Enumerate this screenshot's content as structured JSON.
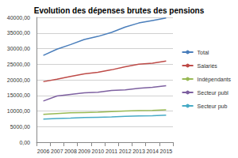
{
  "chart_data": {
    "type": "line",
    "title": "Evolution des dépenses brutes des pensions",
    "categories": [
      "2006",
      "2007",
      "2008",
      "2009",
      "2010",
      "2011",
      "2012",
      "2013",
      "2014",
      "2015"
    ],
    "series": [
      {
        "name": "Total",
        "color": "#4a7ebb",
        "values": [
          27800,
          29800,
          31300,
          32900,
          33900,
          35200,
          36900,
          38200,
          39000,
          39800
        ]
      },
      {
        "name": "Salariés",
        "color": "#be4b48",
        "values": [
          19400,
          20200,
          21100,
          21900,
          22400,
          23200,
          24200,
          25000,
          25300,
          26000
        ]
      },
      {
        "name": "Indépendants",
        "color": "#98b954",
        "values": [
          8900,
          9200,
          9400,
          9500,
          9600,
          9800,
          10000,
          10100,
          10200,
          10400
        ]
      },
      {
        "name": "Secteur publ",
        "color": "#7d60a0",
        "values": [
          13200,
          14800,
          15300,
          15800,
          16000,
          16600,
          16800,
          17300,
          17600,
          18100
        ]
      },
      {
        "name": "Secteur pub",
        "color": "#46aac5",
        "values": [
          7400,
          7600,
          7700,
          7900,
          8000,
          8100,
          8300,
          8400,
          8500,
          8700
        ]
      }
    ],
    "ylim": [
      0,
      40000
    ],
    "yticks": [
      {
        "value": 0,
        "label": "0,00"
      },
      {
        "value": 5000,
        "label": "5000,00"
      },
      {
        "value": 10000,
        "label": "10000,00"
      },
      {
        "value": 15000,
        "label": "15000,00"
      },
      {
        "value": 20000,
        "label": "20000,00"
      },
      {
        "value": 25000,
        "label": "25000,00"
      },
      {
        "value": 30000,
        "label": "30000,00"
      },
      {
        "value": 35000,
        "label": "35000,00"
      },
      {
        "value": 40000,
        "label": "40000,00"
      }
    ],
    "grid": true,
    "legend": "right"
  }
}
